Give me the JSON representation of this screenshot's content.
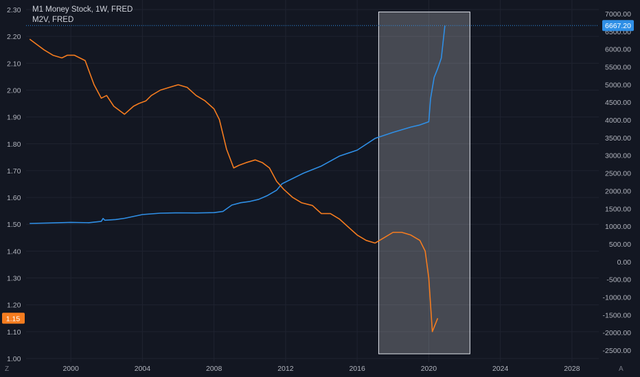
{
  "legend": {
    "series_1": "M1 Money Stock, 1W, FRED",
    "series_2": "M2V, FRED"
  },
  "corner_left": "Z",
  "corner_right": "A",
  "colors": {
    "background": "#131722",
    "grid": "#1f2330",
    "m1_line": "#2f8fe6",
    "m2v_line": "#f57c1f",
    "highlight_box": "rgba(255,255,255,0.22)",
    "highlight_border": "#e0e3eb",
    "crosshair": "#2f8fe6"
  },
  "chart_data": {
    "type": "line",
    "left_axis": {
      "ticks": [
        "2.30",
        "2.20",
        "2.10",
        "2.00",
        "1.90",
        "1.80",
        "1.70",
        "1.60",
        "1.50",
        "1.40",
        "1.30",
        "1.20",
        "1.10",
        "1.00"
      ],
      "range": [
        1.0,
        2.3
      ],
      "last_value_tag": "1.15"
    },
    "right_axis": {
      "ticks": [
        "7000.00",
        "6500.00",
        "6000.00",
        "5500.00",
        "5000.00",
        "4500.00",
        "4000.00",
        "3500.00",
        "3000.00",
        "2500.00",
        "2000.00",
        "1500.00",
        "1000.00",
        "500.00",
        "0.00",
        "-500.00",
        "-1000.00",
        "-1500.00",
        "-2000.00",
        "-2500.00"
      ],
      "range": [
        -2500,
        7000
      ],
      "last_value_tag": "6667.20"
    },
    "x_axis": {
      "ticks": [
        "2000",
        "2004",
        "2008",
        "2012",
        "2016",
        "2020",
        "2024",
        "2028"
      ],
      "range": [
        1997.5,
        2029.5
      ]
    },
    "highlight_range": {
      "x": [
        2017.2,
        2022.3
      ],
      "y_right": [
        -2600,
        7050
      ]
    },
    "series": [
      {
        "name": "M1 Money Stock, 1W, FRED",
        "axis": "right",
        "x": [
          1997.7,
          1999,
          2000,
          2001,
          2001.7,
          2001.8,
          2001.9,
          2002.5,
          2003,
          2004,
          2005,
          2006,
          2007,
          2008,
          2008.5,
          2009,
          2009.5,
          2010,
          2010.5,
          2011,
          2011.5,
          2011.8,
          2012,
          2013,
          2014,
          2015,
          2016,
          2017,
          2018,
          2019,
          2019.5,
          2020.0,
          2020.1,
          2020.3,
          2020.5,
          2020.7,
          2020.9
        ],
        "values": [
          1080,
          1095,
          1110,
          1100,
          1140,
          1220,
          1170,
          1190,
          1225,
          1330,
          1370,
          1380,
          1375,
          1385,
          1420,
          1600,
          1665,
          1700,
          1760,
          1870,
          2020,
          2200,
          2250,
          2500,
          2700,
          2980,
          3150,
          3480,
          3650,
          3800,
          3860,
          3950,
          4600,
          5200,
          5450,
          5750,
          6667.2
        ]
      },
      {
        "name": "M2V, FRED",
        "axis": "left",
        "x": [
          1997.7,
          1998.5,
          1999,
          1999.5,
          1999.8,
          2000.2,
          2000.8,
          2001.3,
          2001.7,
          2002,
          2002.4,
          2003,
          2003.5,
          2003.8,
          2004.2,
          2004.5,
          2005,
          2005.5,
          2006,
          2006.5,
          2007,
          2007.5,
          2008,
          2008.3,
          2008.7,
          2009.1,
          2009.4,
          2009.8,
          2010.3,
          2010.7,
          2011.1,
          2011.5,
          2011.9,
          2012.4,
          2012.9,
          2013.5,
          2014,
          2014.5,
          2015,
          2015.5,
          2016,
          2016.5,
          2017,
          2017.5,
          2018,
          2018.5,
          2019,
          2019.5,
          2019.8,
          2020.0,
          2020.2,
          2020.5
        ],
        "values": [
          2.19,
          2.15,
          2.13,
          2.12,
          2.13,
          2.13,
          2.11,
          2.02,
          1.97,
          1.98,
          1.94,
          1.91,
          1.94,
          1.95,
          1.96,
          1.98,
          2.0,
          2.01,
          2.02,
          2.01,
          1.98,
          1.96,
          1.93,
          1.89,
          1.78,
          1.71,
          1.72,
          1.73,
          1.74,
          1.73,
          1.71,
          1.66,
          1.63,
          1.6,
          1.58,
          1.57,
          1.54,
          1.54,
          1.52,
          1.49,
          1.46,
          1.44,
          1.43,
          1.45,
          1.47,
          1.47,
          1.46,
          1.44,
          1.4,
          1.3,
          1.1,
          1.15
        ]
      }
    ]
  }
}
